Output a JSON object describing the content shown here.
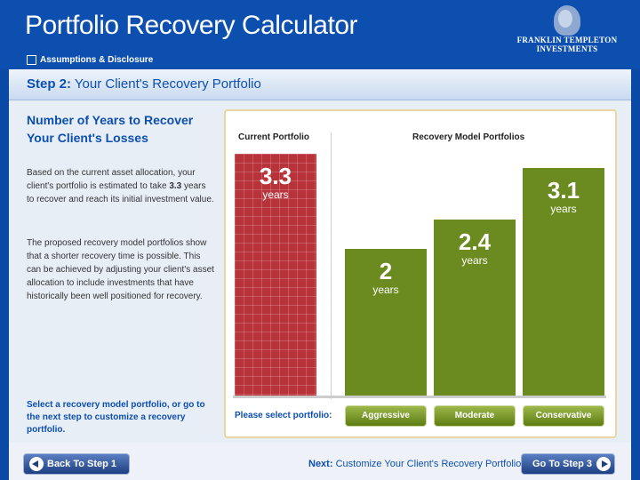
{
  "header": {
    "title": "Portfolio Recovery Calculator",
    "assumptions_link": "Assumptions & Disclosure",
    "logo": {
      "line1": "FRANKLIN TEMPLETON",
      "line2": "INVESTMENTS"
    }
  },
  "step": {
    "label": "Step 2:",
    "title": "Your Client's Recovery Portfolio"
  },
  "left": {
    "title": "Number of Years to Recover Your Client's Losses",
    "para1_pre": "Based on the current asset allocation, your client's portfolio is estimated to take ",
    "para1_value": "3.3",
    "para1_post": " years to recover and reach its initial investment value.",
    "para2": "The proposed recovery model portfolios show that a shorter recovery time is possible. This can be achieved by adjusting your client's asset allocation to include investments that have historically been well positioned for recovery.",
    "note": "Select a recovery model portfolio, or go to the next step to customize a recovery portfolio."
  },
  "chart_data": {
    "type": "bar",
    "headers": {
      "current": "Current Portfolio",
      "recovery": "Recovery Model Portfolios"
    },
    "unit": "years",
    "ylim": [
      0,
      3.3
    ],
    "current": {
      "value": 3.3,
      "label": "3.3",
      "color": "#b8323a"
    },
    "categories": [
      "Aggressive",
      "Moderate",
      "Conservative"
    ],
    "values": [
      2,
      2.4,
      3.1
    ],
    "value_labels": [
      "2",
      "2.4",
      "3.1"
    ],
    "recovery_color": "#6b8a1f"
  },
  "select": {
    "prompt": "Please select portfolio:"
  },
  "footer": {
    "back": "Back To Step 1",
    "next_label": "Next:",
    "next_text": "Customize Your Client's Recovery Portfolio",
    "go": "Go To Step 3"
  }
}
